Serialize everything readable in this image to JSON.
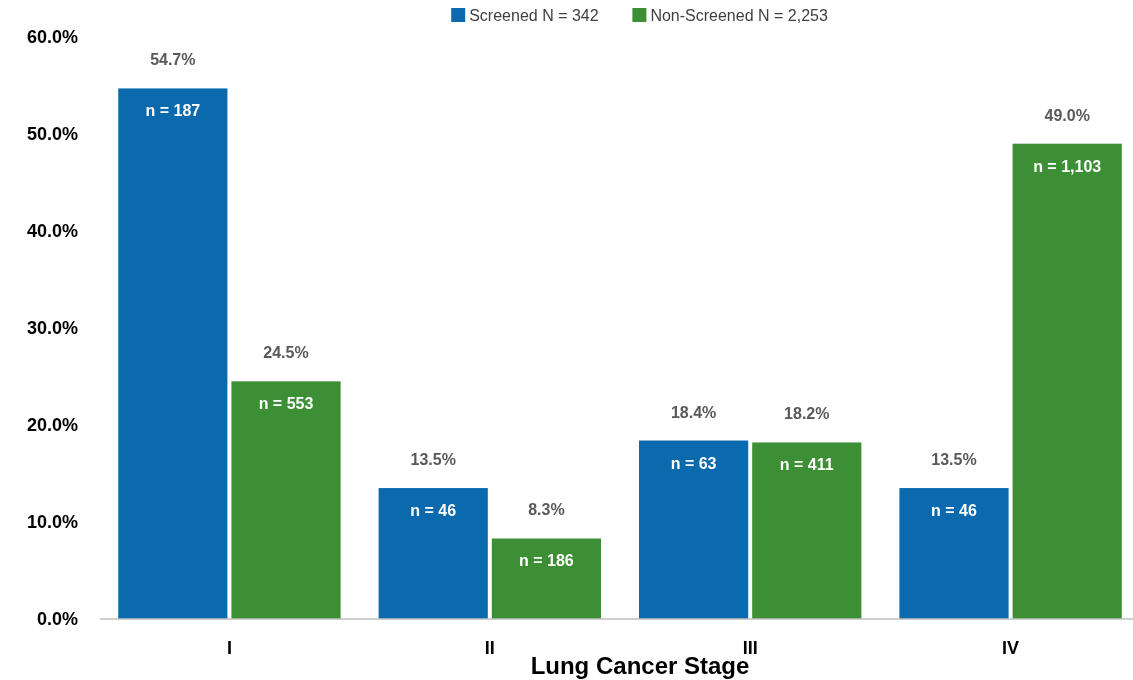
{
  "chart_data": {
    "type": "bar",
    "xlabel": "Lung Cancer Stage",
    "categories": [
      "I",
      "II",
      "III",
      "IV"
    ],
    "series": [
      {
        "name": "Screened N = 342",
        "color": "#0a6aad",
        "values": [
          54.7,
          13.5,
          18.4,
          13.5
        ],
        "value_labels": [
          "54.7%",
          "13.5%",
          "18.4%",
          "13.5%"
        ]
      },
      {
        "name": "Non-Screened N = 2,253",
        "color": "#3d8f35",
        "values": [
          24.5,
          8.3,
          18.2,
          49.0
        ],
        "value_labels": [
          "24.5%",
          "8.3%",
          "18.2%",
          "49.0%"
        ]
      }
    ],
    "annotations": [
      {
        "text": "n = 187",
        "x": "I",
        "y": 54.7
      },
      {
        "text": "n = 553",
        "x": "I",
        "y": 24.5
      },
      {
        "text": "n = 46",
        "x": "II",
        "y": 13.5
      },
      {
        "text": "n = 186",
        "x": "II",
        "y": 8.3
      },
      {
        "text": "n = 63",
        "x": "III",
        "y": 18.4
      },
      {
        "text": "n = 411",
        "x": "III",
        "y": 18.2
      },
      {
        "text": "n = 46",
        "x": "IV",
        "y": 13.5
      },
      {
        "text": "n = 1,103",
        "x": "IV",
        "y": 49.0
      }
    ],
    "ylim": [
      0,
      60
    ],
    "yticks": [
      {
        "value": 0,
        "label": "0.0%"
      },
      {
        "value": 10,
        "label": "10.0%"
      },
      {
        "value": 20,
        "label": "20.0%"
      },
      {
        "value": 30,
        "label": "30.0%"
      },
      {
        "value": 40,
        "label": "40.0%"
      },
      {
        "value": 50,
        "label": "50.0%"
      },
      {
        "value": 60,
        "label": "60.0%"
      }
    ],
    "legend": "top"
  }
}
